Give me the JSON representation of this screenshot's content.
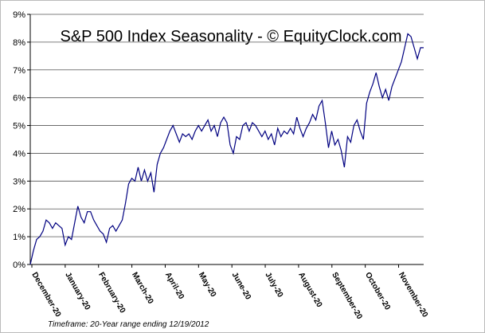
{
  "chart_data": {
    "type": "line",
    "title": "S&P 500 Index Seasonality - © EquityClock.com",
    "footnote": "Timeframe: 20-Year range ending 12/19/2012",
    "x_labels": [
      "December-20",
      "January-20",
      "February-20",
      "March-20",
      "April-20",
      "May-20",
      "June-20",
      "July-20",
      "August-20",
      "September-20",
      "October-20",
      "November-20"
    ],
    "series": [
      {
        "name": "S&P 500",
        "color": "#000080",
        "values": [
          0,
          0.5,
          0.9,
          1.0,
          1.2,
          1.6,
          1.5,
          1.3,
          1.5,
          1.4,
          1.3,
          0.7,
          1.0,
          0.9,
          1.5,
          2.1,
          1.7,
          1.5,
          1.9,
          1.9,
          1.6,
          1.4,
          1.2,
          1.1,
          0.8,
          1.3,
          1.4,
          1.2,
          1.4,
          1.6,
          2.2,
          2.9,
          3.1,
          3.0,
          3.5,
          3.0,
          3.4,
          3.0,
          3.3,
          2.6,
          3.6,
          4.0,
          4.2,
          4.5,
          4.8,
          5.0,
          4.7,
          4.4,
          4.7,
          4.6,
          4.7,
          4.5,
          4.8,
          5.0,
          4.8,
          5.0,
          5.2,
          4.8,
          5.0,
          4.6,
          5.1,
          5.3,
          5.1,
          4.3,
          4.0,
          4.6,
          4.5,
          5.0,
          5.1,
          4.8,
          5.1,
          5.0,
          4.8,
          4.6,
          4.8,
          4.5,
          4.7,
          4.3,
          4.9,
          4.6,
          4.8,
          4.7,
          4.9,
          4.7,
          5.3,
          4.9,
          4.6,
          4.9,
          5.1,
          5.4,
          5.2,
          5.7,
          5.9,
          5.1,
          4.2,
          4.8,
          4.3,
          4.5,
          4.1,
          3.5,
          4.6,
          4.4,
          5.0,
          5.2,
          4.8,
          4.5,
          5.8,
          6.2,
          6.5,
          6.9,
          6.4,
          6.0,
          6.3,
          5.9,
          6.4,
          6.7,
          7.0,
          7.3,
          7.8,
          8.3,
          8.2,
          7.8,
          7.4,
          7.8,
          7.8
        ]
      }
    ],
    "ylim": [
      0,
      9
    ],
    "yticks": [
      {
        "value": 0,
        "label": "0%"
      },
      {
        "value": 1,
        "label": "1%"
      },
      {
        "value": 2,
        "label": "2%"
      },
      {
        "value": 3,
        "label": "3%"
      },
      {
        "value": 4,
        "label": "4%"
      },
      {
        "value": 5,
        "label": "5%"
      },
      {
        "value": 6,
        "label": "6%"
      },
      {
        "value": 7,
        "label": "7%"
      },
      {
        "value": 8,
        "label": "8%"
      },
      {
        "value": 9,
        "label": "9%"
      }
    ],
    "grid": true
  }
}
